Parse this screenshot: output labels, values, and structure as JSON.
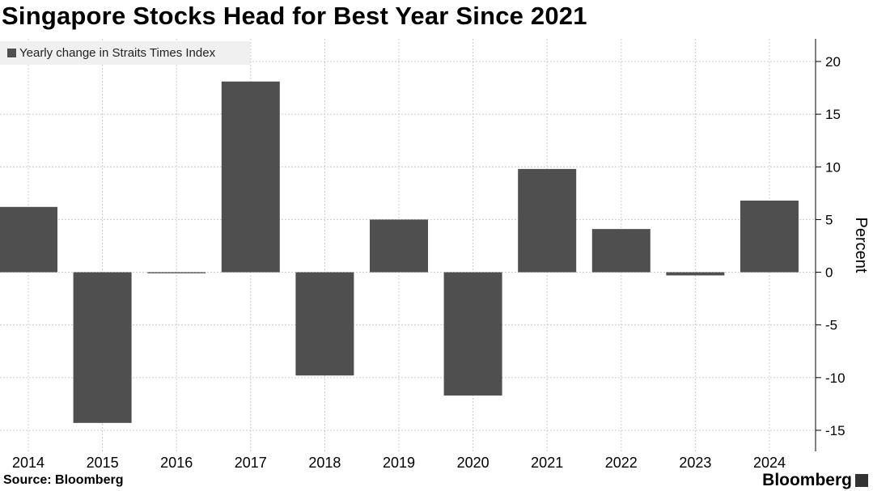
{
  "header": {
    "title": "Singapore Stocks Head for Best Year Since 2021"
  },
  "footer": {
    "source": "Source: Bloomberg",
    "brand": "Bloomberg"
  },
  "colors": {
    "bar": "#4f4f4f",
    "grid": "#cccccc",
    "legend_bg": "#f0f0f0"
  },
  "chart_data": {
    "type": "bar",
    "categories": [
      "2014",
      "2015",
      "2016",
      "2017",
      "2018",
      "2019",
      "2020",
      "2021",
      "2022",
      "2023",
      "2024"
    ],
    "series": [
      {
        "name": "Yearly change in Straits Times Index",
        "values": [
          6.2,
          -14.3,
          -0.1,
          18.1,
          -9.8,
          5.0,
          -11.7,
          9.8,
          4.1,
          -0.3,
          6.8
        ]
      }
    ],
    "ylabel": "Percent",
    "ylim": [
      -17,
      21
    ],
    "yticks": [
      20,
      15,
      10,
      5,
      0,
      -5,
      -10,
      -15
    ],
    "grid": true,
    "legend_position": "top-left",
    "y_axis_side": "right"
  }
}
